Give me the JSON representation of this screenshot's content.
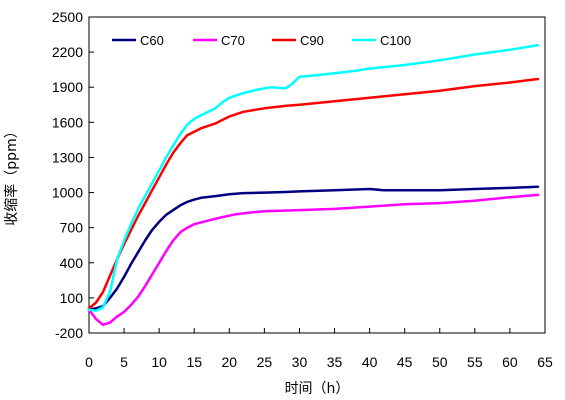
{
  "chart_data": {
    "type": "line",
    "title": "",
    "xlabel": "时间（h）",
    "ylabel": "收缩率（ppm）",
    "xlim": [
      0,
      65
    ],
    "ylim": [
      -200,
      2500
    ],
    "xticks": [
      0,
      5,
      10,
      15,
      20,
      25,
      30,
      35,
      40,
      45,
      50,
      55,
      60,
      65
    ],
    "yticks": [
      -200,
      100,
      400,
      700,
      1000,
      1300,
      1600,
      1900,
      2200,
      2500
    ],
    "grid": false,
    "legend_position": "top",
    "series": [
      {
        "name": "C60",
        "color": "#000080",
        "points": [
          [
            0,
            0
          ],
          [
            1,
            10
          ],
          [
            2,
            30
          ],
          [
            3,
            100
          ],
          [
            4,
            180
          ],
          [
            5,
            280
          ],
          [
            6,
            390
          ],
          [
            7,
            490
          ],
          [
            8,
            590
          ],
          [
            9,
            680
          ],
          [
            10,
            750
          ],
          [
            11,
            810
          ],
          [
            12,
            850
          ],
          [
            13,
            890
          ],
          [
            14,
            920
          ],
          [
            15,
            940
          ],
          [
            16,
            955
          ],
          [
            18,
            970
          ],
          [
            20,
            985
          ],
          [
            22,
            995
          ],
          [
            25,
            1000
          ],
          [
            28,
            1005
          ],
          [
            30,
            1010
          ],
          [
            35,
            1020
          ],
          [
            40,
            1030
          ],
          [
            42,
            1020
          ],
          [
            45,
            1020
          ],
          [
            50,
            1020
          ],
          [
            55,
            1030
          ],
          [
            60,
            1040
          ],
          [
            64,
            1050
          ]
        ]
      },
      {
        "name": "C70",
        "color": "#ff00ff",
        "points": [
          [
            0,
            0
          ],
          [
            1,
            -80
          ],
          [
            2,
            -130
          ],
          [
            3,
            -110
          ],
          [
            4,
            -60
          ],
          [
            5,
            -20
          ],
          [
            6,
            40
          ],
          [
            7,
            110
          ],
          [
            8,
            200
          ],
          [
            9,
            300
          ],
          [
            10,
            400
          ],
          [
            11,
            500
          ],
          [
            12,
            590
          ],
          [
            13,
            660
          ],
          [
            14,
            700
          ],
          [
            15,
            730
          ],
          [
            17,
            760
          ],
          [
            19,
            790
          ],
          [
            21,
            815
          ],
          [
            23,
            830
          ],
          [
            25,
            840
          ],
          [
            30,
            850
          ],
          [
            35,
            860
          ],
          [
            40,
            880
          ],
          [
            45,
            900
          ],
          [
            50,
            910
          ],
          [
            55,
            930
          ],
          [
            60,
            960
          ],
          [
            64,
            980
          ]
        ]
      },
      {
        "name": "C90",
        "color": "#ff0000",
        "points": [
          [
            0,
            10
          ],
          [
            1,
            60
          ],
          [
            2,
            150
          ],
          [
            3,
            290
          ],
          [
            4,
            430
          ],
          [
            5,
            560
          ],
          [
            6,
            680
          ],
          [
            7,
            800
          ],
          [
            8,
            910
          ],
          [
            9,
            1020
          ],
          [
            10,
            1130
          ],
          [
            11,
            1240
          ],
          [
            12,
            1340
          ],
          [
            13,
            1420
          ],
          [
            14,
            1490
          ],
          [
            15,
            1520
          ],
          [
            16,
            1550
          ],
          [
            18,
            1590
          ],
          [
            20,
            1650
          ],
          [
            22,
            1690
          ],
          [
            25,
            1720
          ],
          [
            28,
            1740
          ],
          [
            30,
            1750
          ],
          [
            35,
            1780
          ],
          [
            40,
            1810
          ],
          [
            45,
            1840
          ],
          [
            50,
            1870
          ],
          [
            55,
            1910
          ],
          [
            60,
            1940
          ],
          [
            64,
            1970
          ]
        ]
      },
      {
        "name": "C100",
        "color": "#00ffff",
        "points": [
          [
            0,
            0
          ],
          [
            1,
            -10
          ],
          [
            2,
            20
          ],
          [
            3,
            150
          ],
          [
            4,
            430
          ],
          [
            5,
            590
          ],
          [
            6,
            730
          ],
          [
            7,
            860
          ],
          [
            8,
            970
          ],
          [
            9,
            1080
          ],
          [
            10,
            1190
          ],
          [
            11,
            1300
          ],
          [
            12,
            1400
          ],
          [
            13,
            1500
          ],
          [
            14,
            1580
          ],
          [
            15,
            1630
          ],
          [
            16,
            1660
          ],
          [
            17,
            1690
          ],
          [
            18,
            1720
          ],
          [
            19,
            1770
          ],
          [
            20,
            1810
          ],
          [
            21,
            1830
          ],
          [
            22,
            1850
          ],
          [
            24,
            1880
          ],
          [
            26,
            1900
          ],
          [
            28,
            1890
          ],
          [
            29,
            1930
          ],
          [
            30,
            1990
          ],
          [
            32,
            2000
          ],
          [
            35,
            2020
          ],
          [
            38,
            2040
          ],
          [
            40,
            2060
          ],
          [
            45,
            2090
          ],
          [
            50,
            2130
          ],
          [
            55,
            2180
          ],
          [
            60,
            2220
          ],
          [
            64,
            2260
          ]
        ]
      }
    ]
  }
}
